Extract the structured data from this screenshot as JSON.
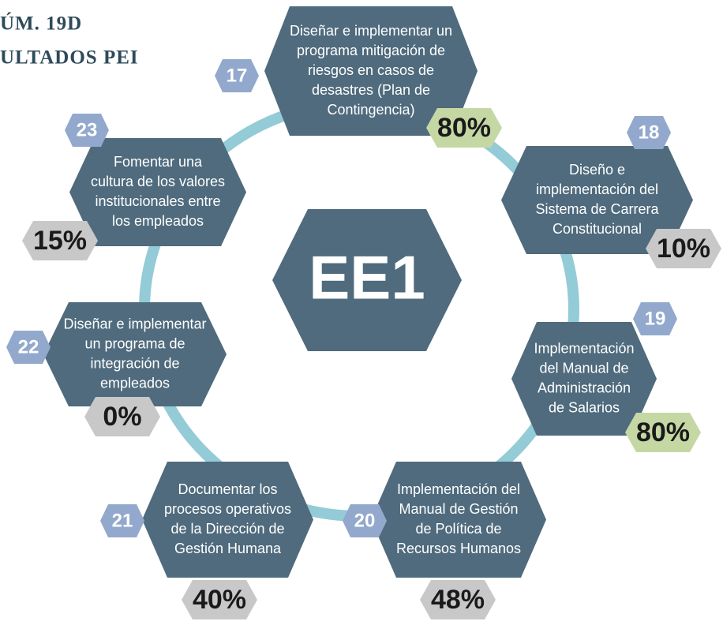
{
  "header": {
    "line1": "ÚM. 19D",
    "line2": "ULTADOS PEI"
  },
  "center": "EE1",
  "nodes": [
    {
      "number": "17",
      "lines": [
        "Diseñar e implementar un",
        "programa mitigación de",
        "riesgos en casos de",
        "desastres (Plan de",
        "Contingencia)"
      ],
      "percent": "80%",
      "badge_color": "#c5d8a4"
    },
    {
      "number": "18",
      "lines": [
        "Diseño e",
        "implementación del",
        "Sistema de Carrera",
        "Constitucional"
      ],
      "percent": "10%",
      "badge_color": "#c8c8c8"
    },
    {
      "number": "19",
      "lines": [
        "Implementación",
        "del Manual de",
        "Administración",
        "de Salarios"
      ],
      "percent": "80%",
      "badge_color": "#c5d8a4"
    },
    {
      "number": "20",
      "lines": [
        "Implementación del",
        "Manual de Gestión",
        "de Política de",
        "Recursos Humanos"
      ],
      "percent": "48%",
      "badge_color": "#c8c8c8"
    },
    {
      "number": "21",
      "lines": [
        "Documentar los",
        "procesos operativos",
        "de la Dirección de",
        "Gestión Humana"
      ],
      "percent": "40%",
      "badge_color": "#c8c8c8"
    },
    {
      "number": "22",
      "lines": [
        "Diseñar e implementar",
        "un programa de",
        "integración de",
        "empleados"
      ],
      "percent": "0%",
      "badge_color": "#c8c8c8"
    },
    {
      "number": "23",
      "lines": [
        "Fomentar una",
        "cultura de los valores",
        "institucionales entre",
        "los empleados"
      ],
      "percent": "15%",
      "badge_color": "#c8c8c8"
    }
  ]
}
